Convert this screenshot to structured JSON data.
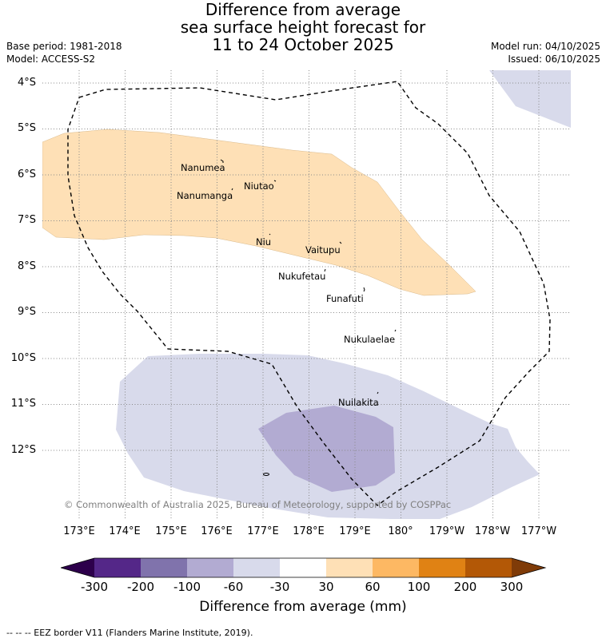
{
  "title": {
    "line1": "Difference from average",
    "line2": "sea surface height forecast for",
    "line3": "11 to 24 October 2025"
  },
  "meta": {
    "base_period": "Base period: 1981-2018",
    "model": "Model: ACCESS-S2",
    "model_run": "Model run: 04/10/2025",
    "issued": "Issued: 06/10/2025"
  },
  "lat_labels": [
    "4°S",
    "5°S",
    "6°S",
    "7°S",
    "8°S",
    "9°S",
    "10°S",
    "11°S",
    "12°S"
  ],
  "lon_labels": [
    "173°E",
    "174°E",
    "175°E",
    "176°E",
    "177°E",
    "178°E",
    "179°E",
    "180°",
    "179°W",
    "178°W",
    "177°W"
  ],
  "islands": [
    "Nanumea",
    "Nanumanga",
    "Niutao",
    "Niu",
    "Vaitupu",
    "Nukufetau",
    "Funafuti",
    "Nukulaelae",
    "Nuilakita"
  ],
  "copyright": "© Commonwealth of Australia 2025, Bureau of Meteorology, supported by COSPPac",
  "colorbar": {
    "ticks": [
      "-300",
      "-200",
      "-100",
      "-60",
      "-30",
      "30",
      "60",
      "100",
      "200",
      "300"
    ],
    "colors": [
      "#2d004b",
      "#542788",
      "#8073ac",
      "#b2abd2",
      "#d8daeb",
      "#ffffff",
      "#fee0b6",
      "#fdb863",
      "#e08214",
      "#b35806",
      "#7f3b08"
    ],
    "title": "Difference from average (mm)"
  },
  "legend_note": "--  --  -- EEZ border V11 (Flanders Marine Institute, 2019)."
}
